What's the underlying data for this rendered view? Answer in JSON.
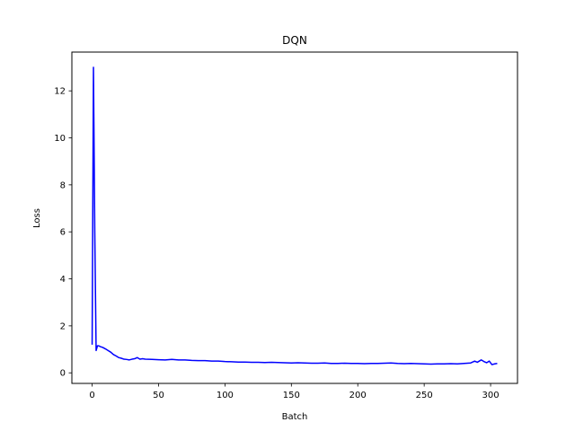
{
  "chart_data": {
    "type": "line",
    "title": "DQN",
    "xlabel": "Batch",
    "ylabel": "Loss",
    "xlim": [
      -15.25,
      320.25
    ],
    "ylim": [
      -0.45,
      13.65
    ],
    "xticks": [
      0,
      50,
      100,
      150,
      200,
      250,
      300
    ],
    "yticks": [
      0,
      2,
      4,
      6,
      8,
      10,
      12
    ],
    "grid": false,
    "color": "#0000ff",
    "series": [
      {
        "x": [
          0,
          1,
          2,
          3,
          4,
          5,
          6,
          8,
          10,
          12,
          14,
          16,
          18,
          20,
          22,
          24,
          26,
          28,
          30,
          32,
          34,
          36,
          38,
          40,
          45,
          50,
          55,
          60,
          65,
          70,
          75,
          80,
          85,
          90,
          95,
          100,
          105,
          110,
          115,
          120,
          125,
          130,
          135,
          140,
          145,
          150,
          155,
          160,
          165,
          170,
          175,
          180,
          185,
          190,
          195,
          200,
          205,
          210,
          215,
          220,
          225,
          230,
          235,
          240,
          245,
          250,
          255,
          260,
          265,
          270,
          275,
          280,
          285,
          288,
          290,
          293,
          295,
          297,
          299,
          301,
          303,
          305
        ],
        "y": [
          1.2,
          13.0,
          6.0,
          0.95,
          1.15,
          1.15,
          1.12,
          1.08,
          1.02,
          0.95,
          0.88,
          0.78,
          0.72,
          0.65,
          0.62,
          0.58,
          0.57,
          0.55,
          0.58,
          0.6,
          0.65,
          0.58,
          0.6,
          0.58,
          0.57,
          0.56,
          0.55,
          0.57,
          0.55,
          0.55,
          0.53,
          0.52,
          0.52,
          0.5,
          0.5,
          0.48,
          0.47,
          0.46,
          0.46,
          0.45,
          0.45,
          0.44,
          0.45,
          0.44,
          0.43,
          0.42,
          0.43,
          0.42,
          0.41,
          0.41,
          0.42,
          0.4,
          0.4,
          0.41,
          0.4,
          0.4,
          0.39,
          0.4,
          0.4,
          0.41,
          0.42,
          0.4,
          0.39,
          0.4,
          0.39,
          0.38,
          0.37,
          0.38,
          0.38,
          0.39,
          0.38,
          0.4,
          0.42,
          0.5,
          0.45,
          0.55,
          0.48,
          0.43,
          0.5,
          0.35,
          0.38,
          0.4
        ]
      }
    ]
  }
}
